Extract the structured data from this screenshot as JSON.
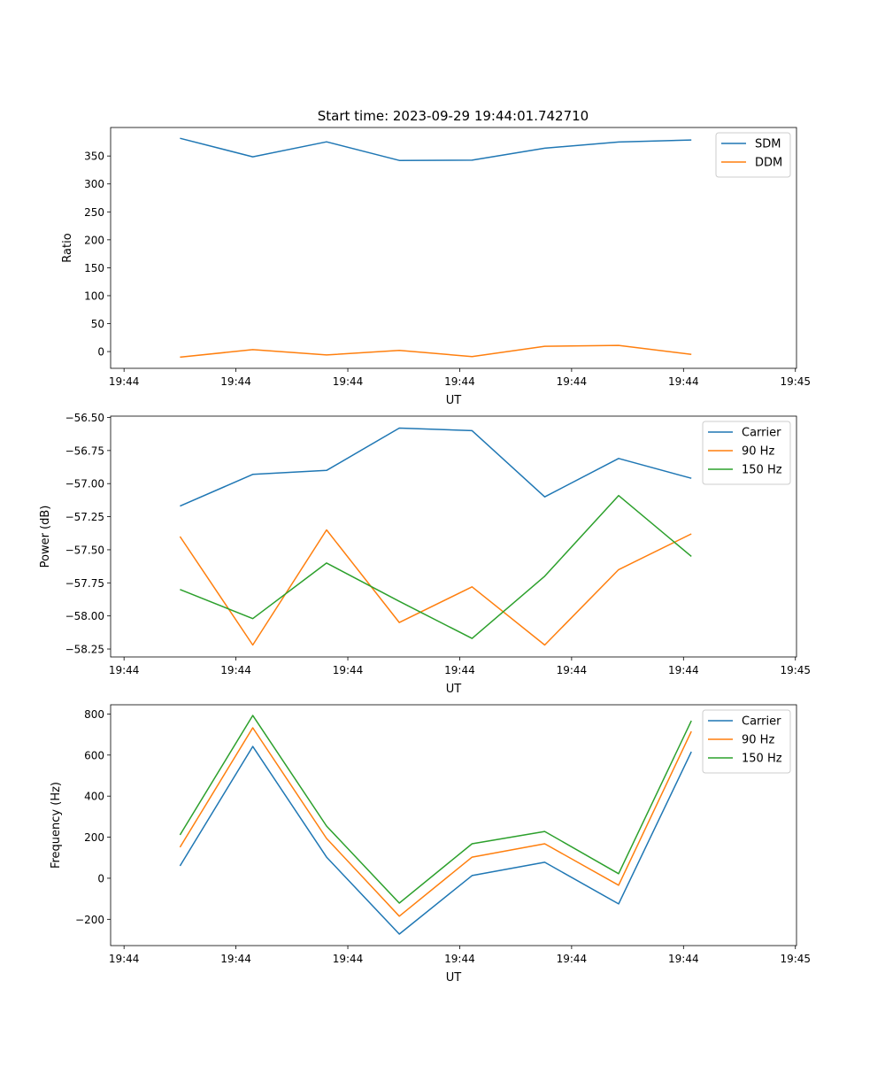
{
  "title": "Start time: 2023-09-29 19:44:01.742710",
  "colors": {
    "blue": "#1f77b4",
    "orange": "#ff7f0e",
    "green": "#2ca02c"
  },
  "chart_data": [
    {
      "type": "line",
      "xlabel": "UT",
      "ylabel": "Ratio",
      "x_unit": "seconds after 19:44:00",
      "x": [
        5.0,
        11.5,
        18.1,
        24.6,
        31.1,
        37.6,
        44.2,
        50.7
      ],
      "xlim": [
        -1.2,
        60.1
      ],
      "xticks": [
        0,
        10,
        20,
        30,
        40,
        50,
        60
      ],
      "xtick_labels": [
        "19:44",
        "19:44",
        "19:44",
        "19:44",
        "19:44",
        "19:44",
        "19:45"
      ],
      "ylim": [
        -30,
        401
      ],
      "yticks": [
        0,
        50,
        100,
        150,
        200,
        250,
        300,
        350
      ],
      "ytick_labels": [
        "0",
        "50",
        "100",
        "150",
        "200",
        "250",
        "300",
        "350"
      ],
      "legend": "top-right",
      "series": [
        {
          "name": "SDM",
          "color": "#1f77b4",
          "values": [
            381.7,
            348.5,
            375.4,
            342.0,
            342.5,
            364.0,
            375.0,
            378.6
          ]
        },
        {
          "name": "DDM",
          "color": "#ff7f0e",
          "values": [
            -10.0,
            3.5,
            -6.0,
            2.0,
            -9.0,
            9.5,
            11.0,
            -5.0
          ]
        }
      ]
    },
    {
      "type": "line",
      "xlabel": "UT",
      "ylabel": "Power (dB)",
      "x_unit": "seconds after 19:44:00",
      "x": [
        5.0,
        11.5,
        18.1,
        24.6,
        31.1,
        37.6,
        44.2,
        50.7
      ],
      "xlim": [
        -1.2,
        60.1
      ],
      "xticks": [
        0,
        10,
        20,
        30,
        40,
        50,
        60
      ],
      "xtick_labels": [
        "19:44",
        "19:44",
        "19:44",
        "19:44",
        "19:44",
        "19:44",
        "19:45"
      ],
      "ylim": [
        -58.31,
        -56.49
      ],
      "yticks": [
        -58.25,
        -58.0,
        -57.75,
        -57.5,
        -57.25,
        -57.0,
        -56.75,
        -56.5
      ],
      "ytick_labels": [
        "−58.25",
        "−58.00",
        "−57.75",
        "−57.50",
        "−57.25",
        "−57.00",
        "−56.75",
        "−56.50"
      ],
      "legend": "top-right",
      "series": [
        {
          "name": "Carrier",
          "color": "#1f77b4",
          "values": [
            -57.17,
            -56.93,
            -56.9,
            -56.58,
            -56.6,
            -57.1,
            -56.81,
            -56.96
          ]
        },
        {
          "name": "90 Hz",
          "color": "#ff7f0e",
          "values": [
            -57.4,
            -58.22,
            -57.35,
            -58.05,
            -57.78,
            -58.22,
            -57.65,
            -57.38
          ]
        },
        {
          "name": "150 Hz",
          "color": "#2ca02c",
          "values": [
            -57.8,
            -58.02,
            -57.6,
            -57.89,
            -58.17,
            -57.7,
            -57.09,
            -57.55
          ]
        }
      ]
    },
    {
      "type": "line",
      "xlabel": "UT",
      "ylabel": "Frequency (Hz)",
      "x_unit": "seconds after 19:44:00",
      "x": [
        5.0,
        11.5,
        18.1,
        24.6,
        31.1,
        37.6,
        44.2,
        50.7
      ],
      "xlim": [
        -1.2,
        60.1
      ],
      "xticks": [
        0,
        10,
        20,
        30,
        40,
        50,
        60
      ],
      "xtick_labels": [
        "19:44",
        "19:44",
        "19:44",
        "19:44",
        "19:44",
        "19:44",
        "19:45"
      ],
      "ylim": [
        -328,
        845
      ],
      "yticks": [
        -200,
        0,
        200,
        400,
        600,
        800
      ],
      "ytick_labels": [
        "−200",
        "0",
        "200",
        "400",
        "600",
        "800"
      ],
      "legend": "top-right",
      "series": [
        {
          "name": "Carrier",
          "color": "#1f77b4",
          "values": [
            60,
            642,
            103,
            -272,
            13,
            78,
            -125,
            616
          ]
        },
        {
          "name": "90 Hz",
          "color": "#ff7f0e",
          "values": [
            151,
            733,
            194,
            -185,
            103,
            168,
            -34,
            715
          ]
        },
        {
          "name": "150 Hz",
          "color": "#2ca02c",
          "values": [
            211,
            793,
            254,
            -121,
            168,
            228,
            22,
            767
          ]
        }
      ]
    }
  ]
}
